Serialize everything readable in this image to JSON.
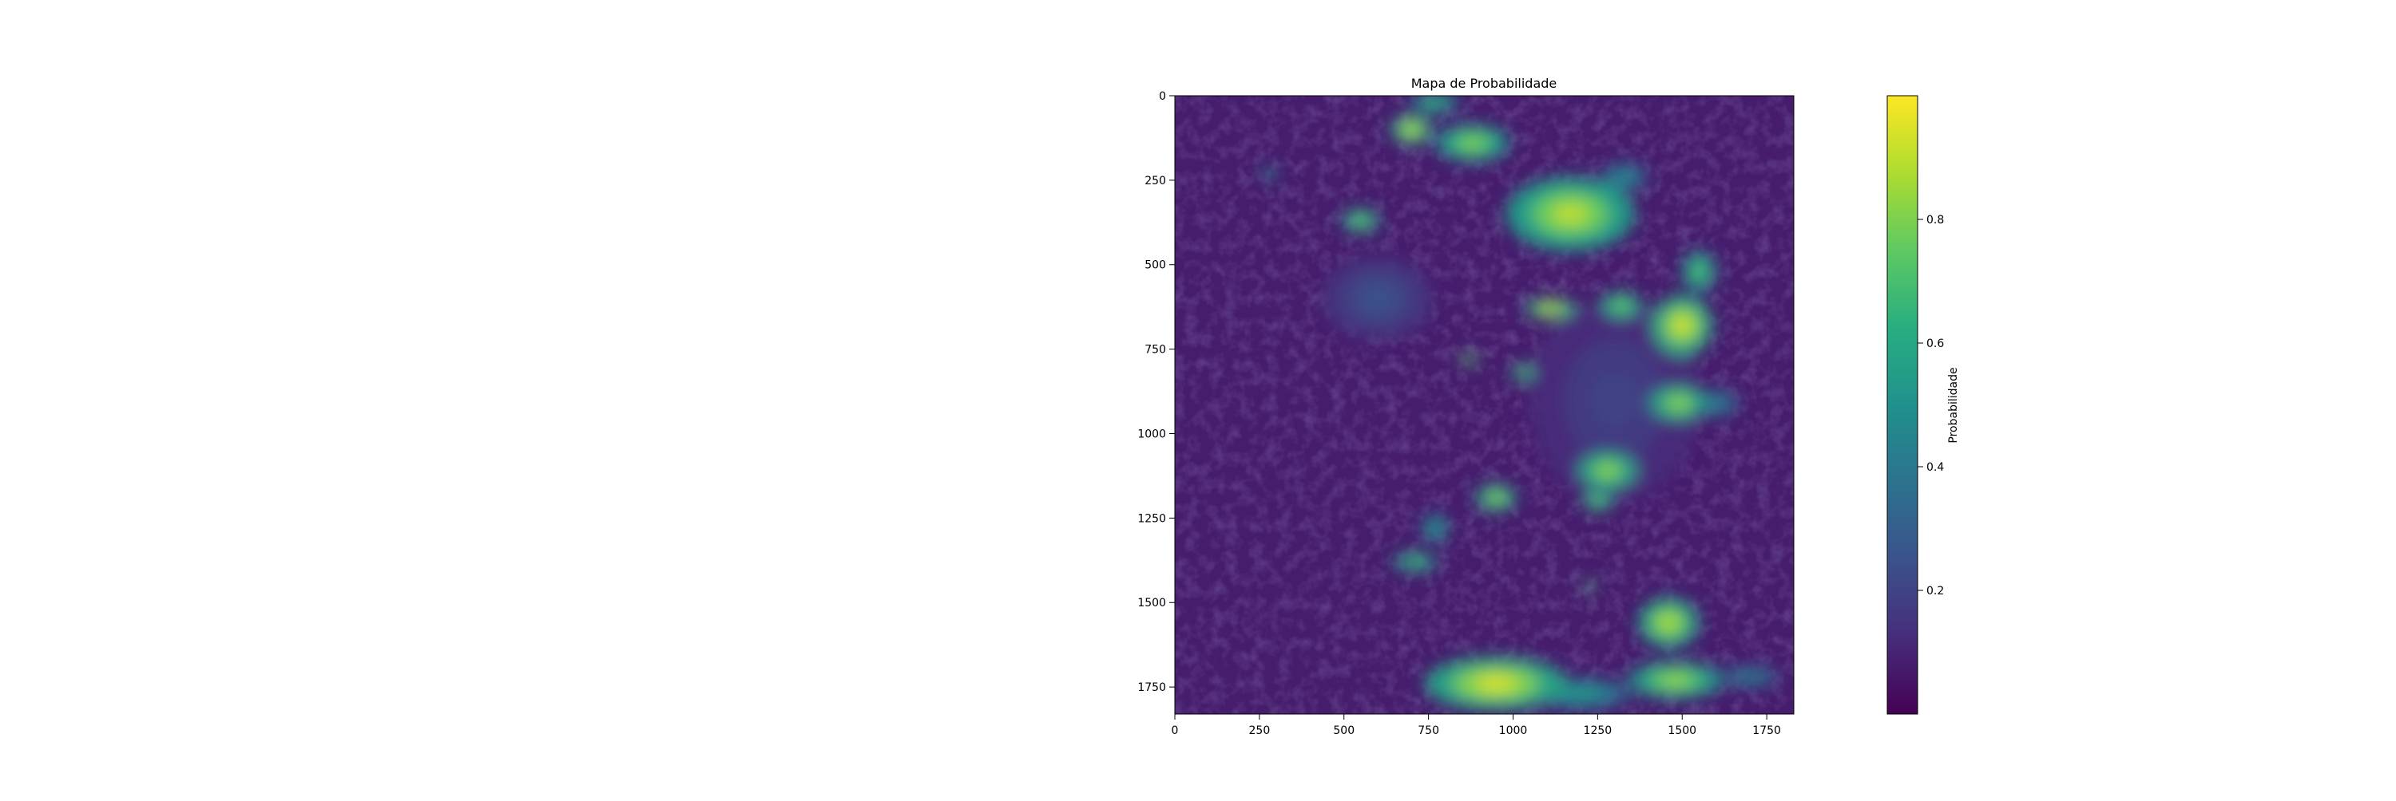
{
  "chart_data": {
    "type": "heatmap",
    "title": "Mapa de Probabilidade",
    "xlabel": "",
    "ylabel": "",
    "x_range": [
      0,
      1830
    ],
    "y_range": [
      0,
      1830
    ],
    "y_inverted": true,
    "x_ticks": [
      0,
      250,
      500,
      750,
      1000,
      1250,
      1500,
      1750
    ],
    "y_ticks": [
      0,
      250,
      500,
      750,
      1000,
      1250,
      1500,
      1750
    ],
    "colormap": "viridis",
    "colorbar": {
      "label": "Probabilidade",
      "range": [
        0.0,
        1.0
      ],
      "ticks": [
        0.2,
        0.4,
        0.6,
        0.8
      ]
    },
    "background_value": 0.08,
    "hotspots": [
      {
        "x": 700,
        "y": 100,
        "rx": 60,
        "ry": 45,
        "value": 0.92
      },
      {
        "x": 880,
        "y": 140,
        "rx": 110,
        "ry": 55,
        "value": 0.82
      },
      {
        "x": 770,
        "y": 20,
        "rx": 70,
        "ry": 30,
        "value": 0.7
      },
      {
        "x": 1170,
        "y": 350,
        "rx": 190,
        "ry": 110,
        "value": 0.9
      },
      {
        "x": 550,
        "y": 370,
        "rx": 55,
        "ry": 35,
        "value": 0.8
      },
      {
        "x": 280,
        "y": 230,
        "rx": 25,
        "ry": 20,
        "value": 0.5
      },
      {
        "x": 1550,
        "y": 520,
        "rx": 50,
        "ry": 60,
        "value": 0.75
      },
      {
        "x": 1500,
        "y": 680,
        "rx": 90,
        "ry": 90,
        "value": 0.95
      },
      {
        "x": 1320,
        "y": 620,
        "rx": 60,
        "ry": 40,
        "value": 0.8
      },
      {
        "x": 1110,
        "y": 630,
        "rx": 75,
        "ry": 30,
        "value": 0.95
      },
      {
        "x": 870,
        "y": 780,
        "rx": 25,
        "ry": 18,
        "value": 0.9
      },
      {
        "x": 1030,
        "y": 820,
        "rx": 35,
        "ry": 25,
        "value": 0.8
      },
      {
        "x": 1490,
        "y": 910,
        "rx": 90,
        "ry": 50,
        "value": 0.85
      },
      {
        "x": 1280,
        "y": 1110,
        "rx": 90,
        "ry": 55,
        "value": 0.85
      },
      {
        "x": 1250,
        "y": 1200,
        "rx": 45,
        "ry": 30,
        "value": 0.8
      },
      {
        "x": 950,
        "y": 1190,
        "rx": 60,
        "ry": 40,
        "value": 0.85
      },
      {
        "x": 770,
        "y": 1280,
        "rx": 40,
        "ry": 40,
        "value": 0.6
      },
      {
        "x": 710,
        "y": 1380,
        "rx": 65,
        "ry": 28,
        "value": 0.75
      },
      {
        "x": 1225,
        "y": 1450,
        "rx": 18,
        "ry": 15,
        "value": 0.85
      },
      {
        "x": 1460,
        "y": 1560,
        "rx": 90,
        "ry": 75,
        "value": 0.9
      },
      {
        "x": 950,
        "y": 1740,
        "rx": 210,
        "ry": 80,
        "value": 0.95
      },
      {
        "x": 1480,
        "y": 1730,
        "rx": 140,
        "ry": 55,
        "value": 0.85
      },
      {
        "x": 1200,
        "y": 1770,
        "rx": 150,
        "ry": 45,
        "value": 0.55
      },
      {
        "x": 1700,
        "y": 1720,
        "rx": 90,
        "ry": 30,
        "value": 0.45
      },
      {
        "x": 1600,
        "y": 910,
        "rx": 70,
        "ry": 40,
        "value": 0.45
      },
      {
        "x": 1330,
        "y": 240,
        "rx": 70,
        "ry": 40,
        "value": 0.5
      },
      {
        "x": 600,
        "y": 600,
        "rx": 160,
        "ry": 120,
        "value": 0.25
      },
      {
        "x": 1300,
        "y": 900,
        "rx": 250,
        "ry": 300,
        "value": 0.2
      }
    ]
  }
}
